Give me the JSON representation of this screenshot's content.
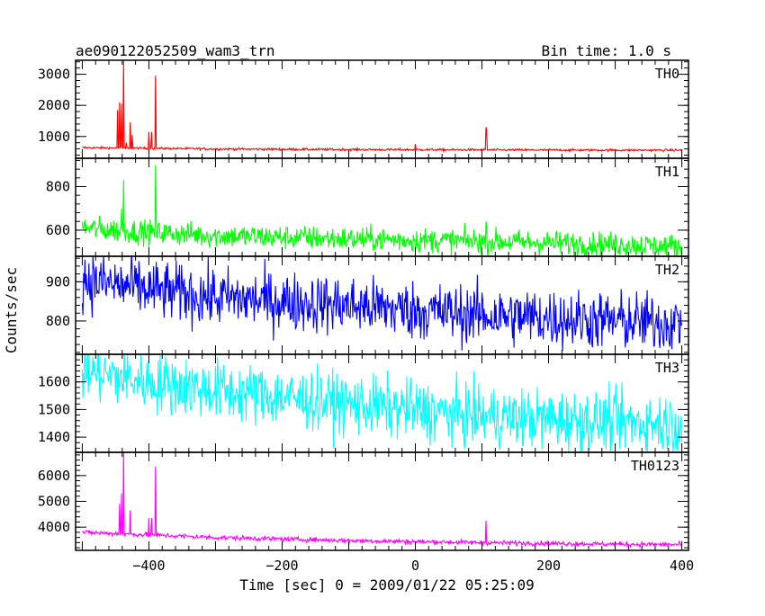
{
  "header": {
    "title": "ae090122052509_wam3_trn",
    "bin_time": "Bin time: 1.0 s"
  },
  "axes": {
    "ylabel": "Counts/sec",
    "xlabel": "Time [sec] 0 = 2009/01/22 05:25:09"
  },
  "chart_data": {
    "type": "line",
    "title": "ae090122052509_wam3_trn",
    "subtitle": "Bin time: 1.0 s",
    "xlabel": "Time [sec] 0 = 2009/01/22 05:25:09",
    "ylabel": "Counts/sec",
    "xlim": [
      -510,
      410
    ],
    "x_ticks": [
      -400,
      -200,
      0,
      200,
      400
    ],
    "x_tick_labels": [
      "−400",
      "−200",
      "0",
      "200",
      "400"
    ],
    "grid": false,
    "sampling": "1.0 s bins; values below are representative samples read from the plot",
    "panels": [
      {
        "name": "TH0",
        "color": "#ff0000",
        "ylim": [
          300,
          3450
        ],
        "y_ticks": [
          1000,
          2000,
          3000
        ],
        "baseline": {
          "x": [
            -500,
            -450,
            -300,
            -100,
            100,
            300,
            400
          ],
          "y": [
            640,
            630,
            600,
            580,
            570,
            560,
            560
          ]
        },
        "noise": 18,
        "peaks": [
          {
            "x": -447,
            "y": 1850
          },
          {
            "x": -444,
            "y": 2100
          },
          {
            "x": -441,
            "y": 2050
          },
          {
            "x": -438,
            "y": 3450
          },
          {
            "x": -434,
            "y": 800
          },
          {
            "x": -428,
            "y": 1450
          },
          {
            "x": -425,
            "y": 1050
          },
          {
            "x": -400,
            "y": 1150
          },
          {
            "x": -396,
            "y": 1150
          },
          {
            "x": -390,
            "y": 2950
          },
          {
            "x": 0,
            "y": 760
          },
          {
            "x": 106,
            "y": 1300
          },
          {
            "x": 107,
            "y": 1200
          }
        ]
      },
      {
        "name": "TH1",
        "color": "#00ff00",
        "ylim": [
          480,
          930
        ],
        "y_ticks": [
          600,
          800
        ],
        "baseline": {
          "x": [
            -500,
            -400,
            -300,
            -100,
            100,
            300,
            400
          ],
          "y": [
            610,
            590,
            575,
            560,
            550,
            535,
            525
          ]
        },
        "noise": 28,
        "peaks": [
          {
            "x": -441,
            "y": 700
          },
          {
            "x": -438,
            "y": 830
          },
          {
            "x": -390,
            "y": 900
          },
          {
            "x": 106,
            "y": 640
          }
        ]
      },
      {
        "name": "TH2",
        "color": "#0000ff",
        "ylim": [
          715,
          965
        ],
        "y_ticks": [
          800,
          900
        ],
        "baseline": {
          "x": [
            -500,
            -400,
            -300,
            -100,
            100,
            300,
            400
          ],
          "y": [
            905,
            880,
            860,
            840,
            815,
            800,
            795
          ]
        },
        "noise": 38,
        "peaks": []
      },
      {
        "name": "TH3",
        "color": "#00ffff",
        "ylim": [
          1345,
          1700
        ],
        "y_ticks": [
          1400,
          1500,
          1600
        ],
        "baseline": {
          "x": [
            -500,
            -400,
            -300,
            -100,
            100,
            300,
            400
          ],
          "y": [
            1640,
            1600,
            1570,
            1520,
            1475,
            1455,
            1450
          ]
        },
        "noise": 55,
        "peaks": []
      },
      {
        "name": "TH0123",
        "color": "#ff00ff",
        "ylim": [
          3100,
          6900
        ],
        "y_ticks": [
          4000,
          5000,
          6000
        ],
        "baseline": {
          "x": [
            -500,
            -400,
            -300,
            -100,
            100,
            300,
            400
          ],
          "y": [
            3800,
            3700,
            3600,
            3480,
            3400,
            3340,
            3320
          ]
        },
        "noise": 45,
        "peaks": [
          {
            "x": -444,
            "y": 4900
          },
          {
            "x": -441,
            "y": 5300
          },
          {
            "x": -438,
            "y": 6900
          },
          {
            "x": -428,
            "y": 4650
          },
          {
            "x": -400,
            "y": 4350
          },
          {
            "x": -396,
            "y": 4350
          },
          {
            "x": -390,
            "y": 6350
          },
          {
            "x": 106,
            "y": 4250
          }
        ]
      }
    ]
  }
}
